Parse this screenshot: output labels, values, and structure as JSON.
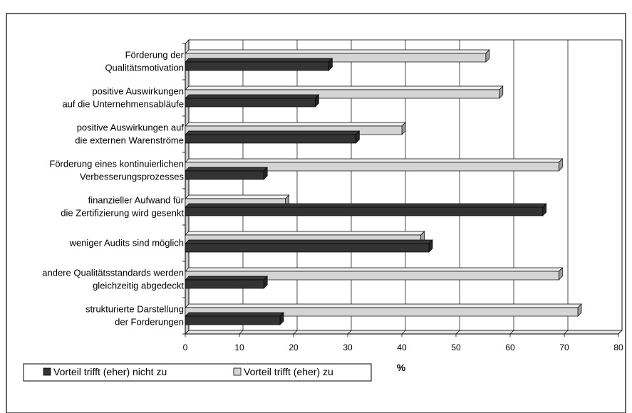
{
  "chart_data": {
    "type": "bar",
    "orientation": "horizontal",
    "three_d": true,
    "title": "",
    "xlabel": "%",
    "ylabel": "",
    "xlim": [
      0,
      80
    ],
    "x_ticks": [
      "0",
      "10",
      "20",
      "30",
      "40",
      "50",
      "60",
      "70",
      "80"
    ],
    "grid": true,
    "legend_position": "bottom-left",
    "categories": [
      [
        "Förderung der",
        "Qualitätsmotivation"
      ],
      [
        "positive Auswirkungen",
        "auf die Unternehmensabläufe"
      ],
      [
        "positive Auswirkungen auf",
        "die externen Warenströme"
      ],
      [
        "Förderung eines kontinuierlichen",
        "Verbesserungsprozesses"
      ],
      [
        "finanzieller Aufwand für",
        "die Zertifizierung wird gesenkt"
      ],
      [
        "weniger Audits sind möglich"
      ],
      [
        "andere Qualitätsstandards werden",
        "gleichzeitig abgedeckt"
      ],
      [
        "strukturierte Darstellung",
        "der Forderungen"
      ]
    ],
    "series": [
      {
        "name": "Vorteil trifft (eher) nicht zu",
        "color": "#333333",
        "values": [
          26.5,
          24,
          31.5,
          14.5,
          66,
          45,
          14.5,
          17.5
        ]
      },
      {
        "name": "Vorteil trifft (eher) zu",
        "color": "#d4d4d4",
        "values": [
          55.5,
          58,
          40,
          69,
          18.5,
          43.5,
          69,
          72.5
        ]
      }
    ]
  }
}
